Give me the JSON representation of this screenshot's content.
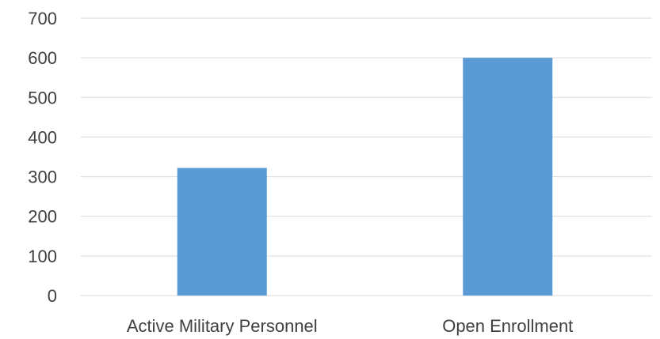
{
  "chart_data": {
    "type": "bar",
    "categories": [
      "Active Military Personnel",
      "Open Enrollment"
    ],
    "values": [
      322,
      600
    ],
    "ylim": [
      0,
      700
    ],
    "yticks": [
      0,
      100,
      200,
      300,
      400,
      500,
      600,
      700
    ],
    "grid": true,
    "legend": "none",
    "bar_color": "#5b9bd5",
    "title": "",
    "xlabel": "",
    "ylabel": ""
  }
}
